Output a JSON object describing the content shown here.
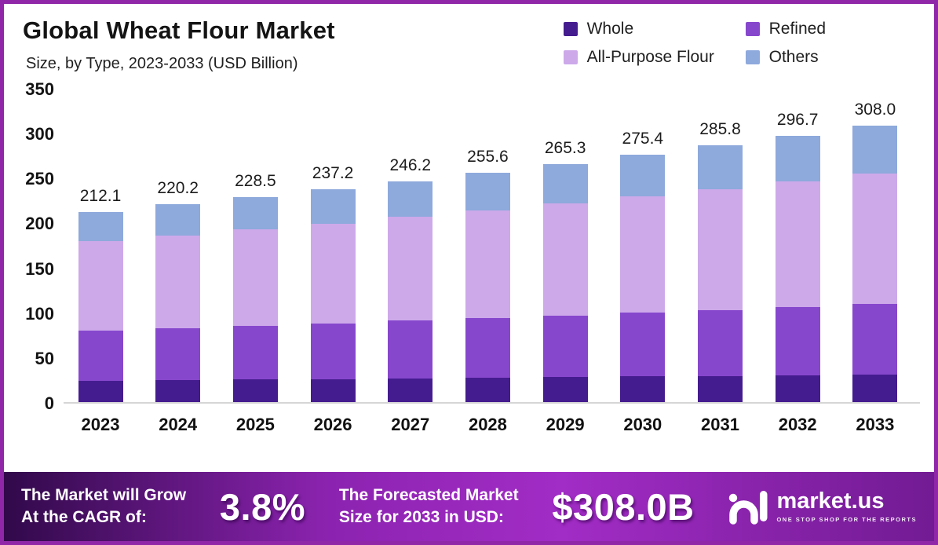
{
  "header": {
    "title": "Global Wheat Flour Market",
    "subtitle": "Size, by Type, 2023-2033 (USD Billion)"
  },
  "chart_data": {
    "type": "bar",
    "stacked": true,
    "title": "Global Wheat Flour Market Size, by Type, 2023-2033 (USD Billion)",
    "categories": [
      "2023",
      "2024",
      "2025",
      "2026",
      "2027",
      "2028",
      "2029",
      "2030",
      "2031",
      "2032",
      "2033"
    ],
    "totals": [
      "212.1",
      "220.2",
      "228.5",
      "237.2",
      "246.2",
      "255.6",
      "265.3",
      "275.4",
      "285.8",
      "296.7",
      "308.0"
    ],
    "series": [
      {
        "name": "Whole",
        "color": "#451c8f",
        "values": [
          23.8,
          24.4,
          25.0,
          25.7,
          26.4,
          27.1,
          27.8,
          28.5,
          29.3,
          30.0,
          30.8
        ]
      },
      {
        "name": "Refined",
        "color": "#8747cd",
        "values": [
          56.2,
          58.1,
          60.1,
          62.1,
          64.3,
          66.5,
          68.7,
          71.1,
          73.4,
          76.0,
          78.5
        ]
      },
      {
        "name": "All-Purpose Flour",
        "color": "#cda9ea",
        "values": [
          99.1,
          103.0,
          107.0,
          111.2,
          115.6,
          120.1,
          124.9,
          129.8,
          134.8,
          140.2,
          145.7
        ]
      },
      {
        "name": "Others",
        "color": "#8ea9dc",
        "values": [
          33.0,
          34.7,
          36.4,
          38.2,
          39.9,
          41.9,
          43.9,
          46.0,
          48.3,
          50.5,
          53.0
        ]
      }
    ],
    "ylabel": "",
    "xlabel": "",
    "ylim": [
      0,
      350
    ],
    "yticks": [
      350,
      300,
      250,
      200,
      150,
      100,
      50,
      0
    ],
    "grid": false,
    "legend_position": "top-right",
    "bar_total_labels_shown": true
  },
  "banner": {
    "cagr_label_line1": "The Market will Grow",
    "cagr_label_line2": "At the CAGR of:",
    "cagr_value": "3.8%",
    "forecast_label_line1": "The Forecasted Market",
    "forecast_label_line2": "Size for 2033 in USD:",
    "forecast_value": "$308.0B",
    "logo_text": "market.us",
    "logo_tagline": "ONE STOP SHOP FOR THE REPORTS"
  },
  "colors": {
    "page_border": "#8f27a8",
    "axis_line": "#d6d6d6",
    "banner_gradient": [
      "#31094a",
      "#8c23b0",
      "#a22cc6",
      "#721b93"
    ]
  }
}
